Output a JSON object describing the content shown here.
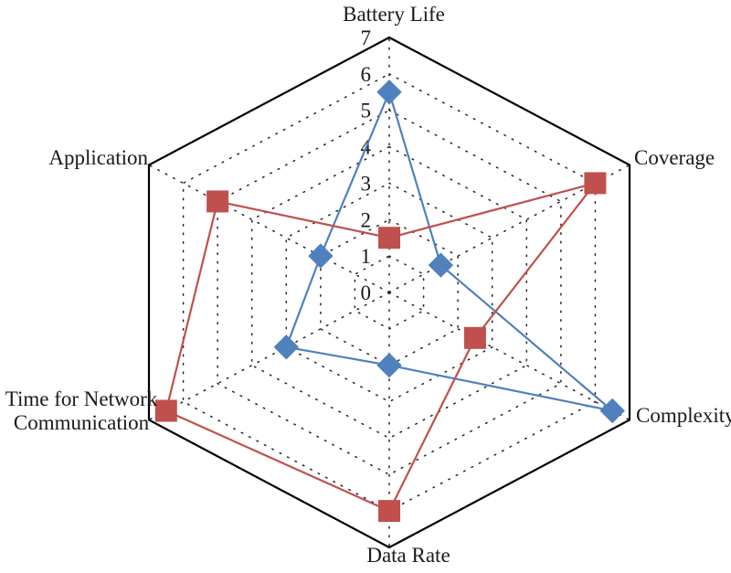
{
  "chart_data": {
    "type": "radar",
    "title": "",
    "categories": [
      "Battery Life",
      "Coverage",
      "Complexity",
      "Data Rate",
      "Time for Network Communication",
      "Application"
    ],
    "axis_display_labels": [
      "Battery Life",
      "Coverage",
      "Complexity",
      "Data Rate",
      "Time for Network\nCommunication",
      "Application"
    ],
    "ticks": [
      0,
      1,
      2,
      3,
      4,
      5,
      6,
      7
    ],
    "rmin": 0,
    "rmax": 7,
    "grid": "dotted hexagonal rings at 1-6 with dotted radial spokes, solid outer hexagon at 7",
    "legend": "none",
    "series": [
      {
        "name": "blue-diamond-series",
        "marker": "diamond",
        "color": "#4f81bd",
        "values": [
          5.5,
          1.5,
          6.5,
          2,
          3,
          2
        ]
      },
      {
        "name": "red-square-series",
        "marker": "square",
        "color": "#c0504d",
        "values": [
          1.5,
          6,
          2.5,
          6,
          6.5,
          5
        ]
      }
    ],
    "outline_color": "#000000",
    "grid_color": "#222222",
    "tick_color": "#1a1a1a",
    "label_color": "#1a1a1a"
  }
}
